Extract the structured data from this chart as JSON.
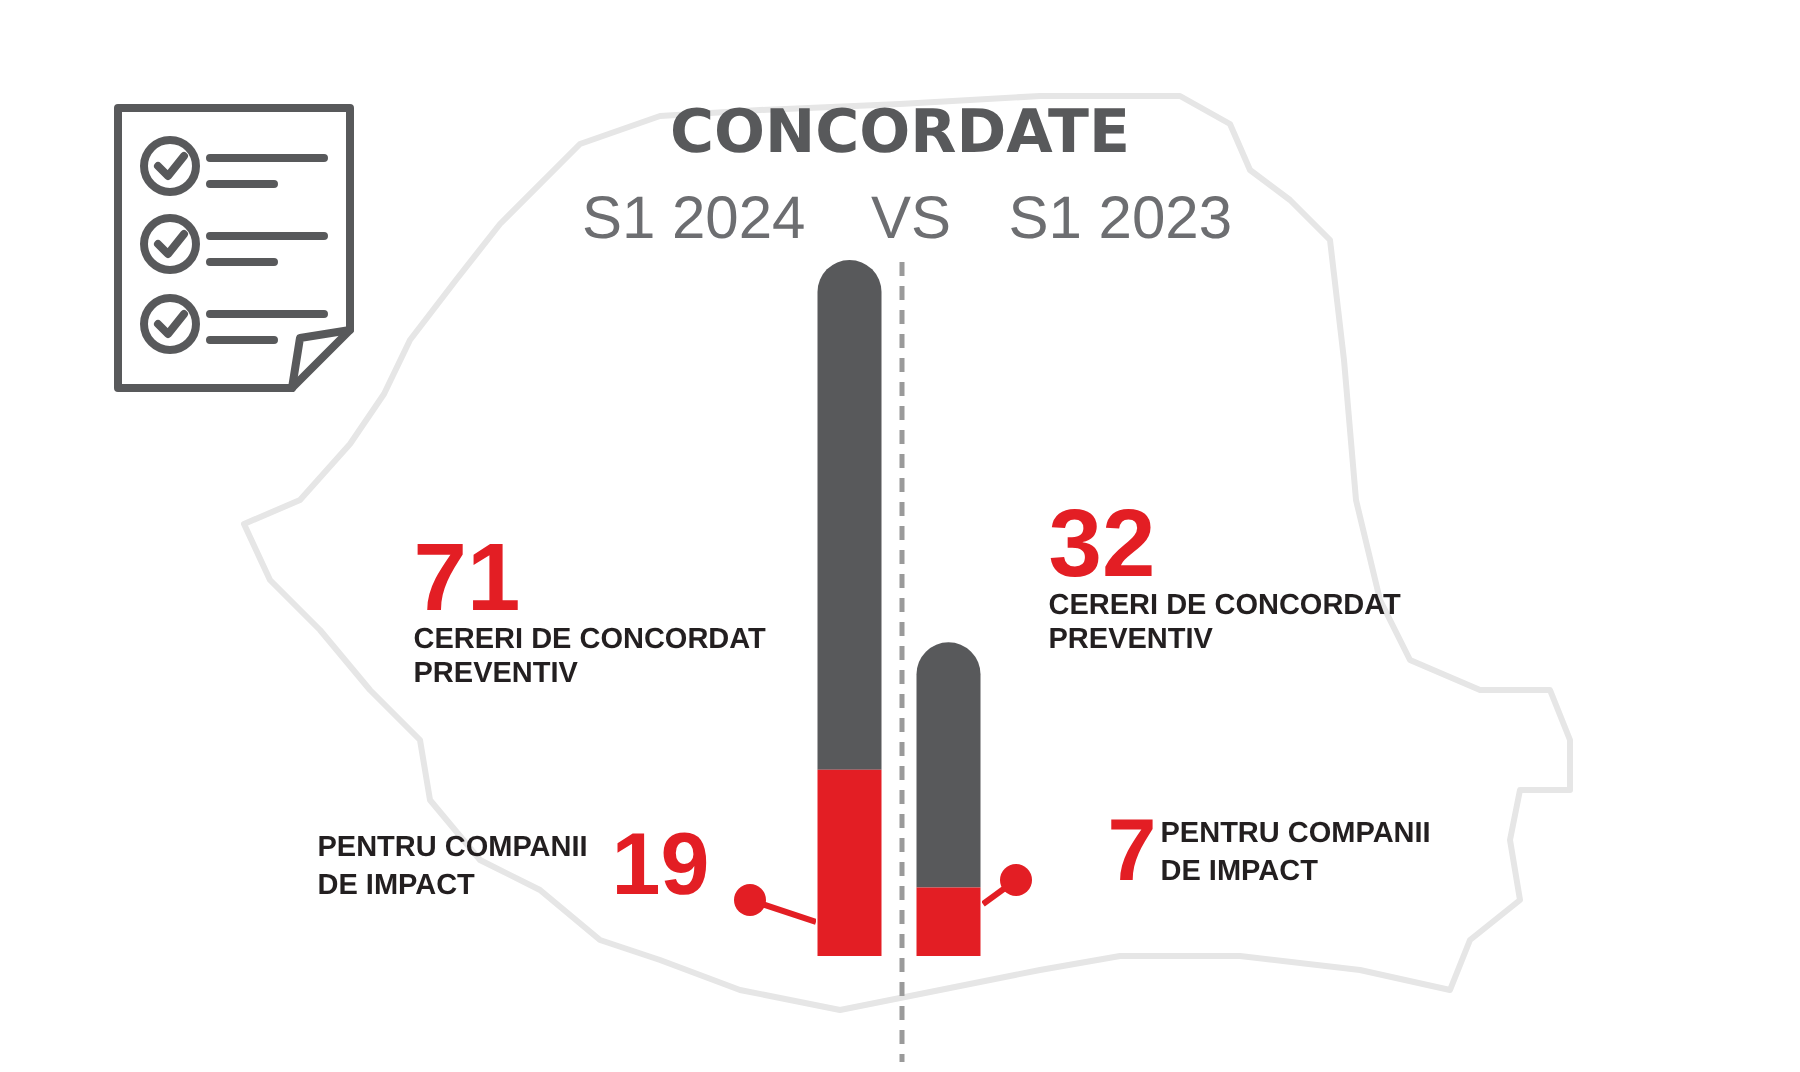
{
  "chart_data": {
    "type": "bar",
    "title": "CONCORDATE",
    "categories": [
      "S1 2024",
      "S1 2023"
    ],
    "stacked": true,
    "tick_labels": "x",
    "series": [
      {
        "name": "PENTRU COMPANII DE IMPACT",
        "color": "#e31e24",
        "values": [
          19,
          7
        ],
        "value_labels": [
          "19",
          "7"
        ]
      },
      {
        "color": "#58595b",
        "values": [
          52,
          25
        ]
      }
    ],
    "totals": [
      "71",
      "32"
    ],
    "annotations": [
      "VS",
      "CERERI DE CONCORDAT PREVENTIV",
      "CERERI DE CONCORDAT PREVENTIV"
    ]
  }
}
